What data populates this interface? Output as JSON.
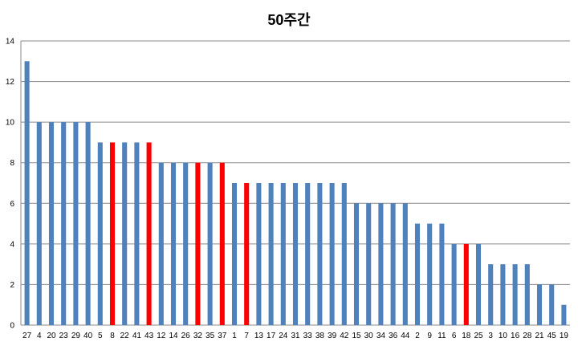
{
  "chart_data": {
    "type": "bar",
    "title": "50주간",
    "xlabel": "",
    "ylabel": "",
    "ylim": [
      0,
      14
    ],
    "yticks": [
      0,
      2,
      4,
      6,
      8,
      10,
      12,
      14
    ],
    "grid": true,
    "legend": "none",
    "colors": {
      "default": "#4F81BD",
      "highlight": "#FF0000"
    },
    "categories": [
      "27",
      "4",
      "20",
      "23",
      "29",
      "40",
      "5",
      "8",
      "22",
      "41",
      "43",
      "12",
      "14",
      "26",
      "32",
      "35",
      "37",
      "1",
      "7",
      "13",
      "17",
      "24",
      "31",
      "33",
      "38",
      "39",
      "42",
      "15",
      "30",
      "34",
      "36",
      "44",
      "2",
      "9",
      "11",
      "6",
      "18",
      "25",
      "3",
      "10",
      "16",
      "28",
      "21",
      "45",
      "19"
    ],
    "values": [
      13,
      10,
      10,
      10,
      10,
      10,
      9,
      9,
      9,
      9,
      9,
      8,
      8,
      8,
      8,
      8,
      8,
      7,
      7,
      7,
      7,
      7,
      7,
      7,
      7,
      7,
      7,
      6,
      6,
      6,
      6,
      6,
      5,
      5,
      5,
      4,
      4,
      4,
      3,
      3,
      3,
      3,
      2,
      2,
      1
    ],
    "highlighted": [
      "8",
      "43",
      "32",
      "37",
      "7",
      "18"
    ]
  }
}
